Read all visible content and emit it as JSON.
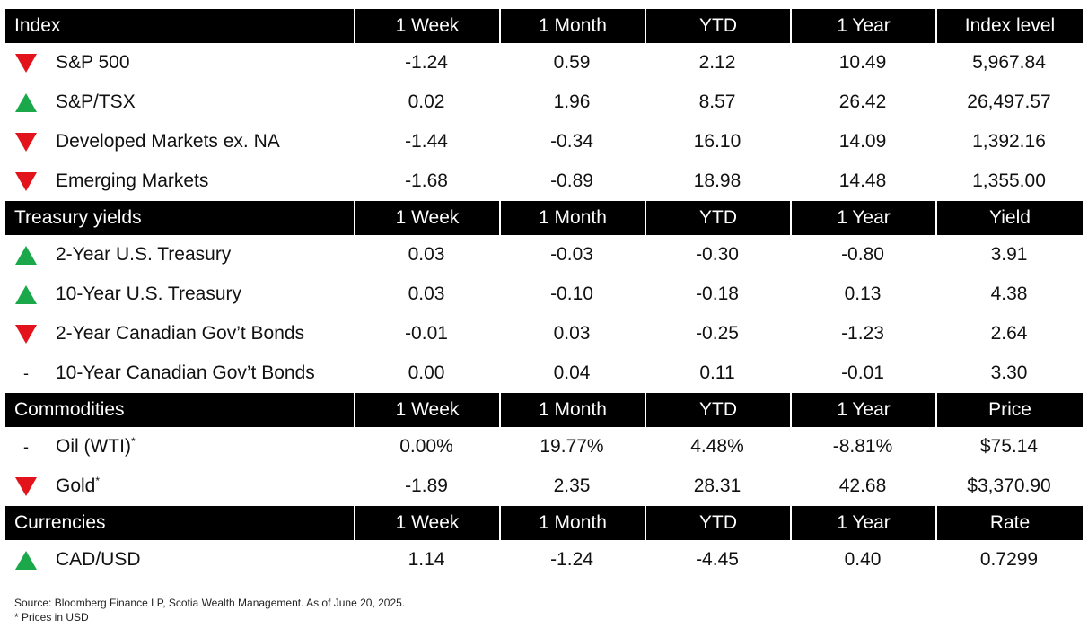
{
  "sections": [
    {
      "headers": [
        "Index",
        "1 Week",
        "1 Month",
        "YTD",
        "1 Year",
        "Index level"
      ],
      "rows": [
        {
          "trend": "down",
          "name": "S&P 500",
          "sup": "",
          "values": [
            "-1.24",
            "0.59",
            "2.12",
            "10.49",
            "5,967.84"
          ]
        },
        {
          "trend": "up",
          "name": "S&P/TSX",
          "sup": "",
          "values": [
            "0.02",
            "1.96",
            "8.57",
            "26.42",
            "26,497.57"
          ]
        },
        {
          "trend": "down",
          "name": "Developed Markets ex. NA",
          "sup": "",
          "values": [
            "-1.44",
            "-0.34",
            "16.10",
            "14.09",
            "1,392.16"
          ]
        },
        {
          "trend": "down",
          "name": "Emerging Markets",
          "sup": "",
          "values": [
            "-1.68",
            "-0.89",
            "18.98",
            "14.48",
            "1,355.00"
          ]
        }
      ]
    },
    {
      "headers": [
        "Treasury yields",
        "1 Week",
        "1 Month",
        "YTD",
        "1 Year",
        "Yield"
      ],
      "rows": [
        {
          "trend": "up",
          "name": "2-Year U.S. Treasury",
          "sup": "",
          "values": [
            "0.03",
            "-0.03",
            "-0.30",
            "-0.80",
            "3.91"
          ]
        },
        {
          "trend": "up",
          "name": "10-Year U.S. Treasury",
          "sup": "",
          "values": [
            "0.03",
            "-0.10",
            "-0.18",
            "0.13",
            "4.38"
          ]
        },
        {
          "trend": "down",
          "name": "2-Year Canadian Gov’t Bonds",
          "sup": "",
          "values": [
            "-0.01",
            "0.03",
            "-0.25",
            "-1.23",
            "2.64"
          ]
        },
        {
          "trend": "flat",
          "name": "10-Year Canadian Gov’t Bonds",
          "sup": "",
          "values": [
            "0.00",
            "0.04",
            "0.11",
            "-0.01",
            "3.30"
          ]
        }
      ]
    },
    {
      "headers": [
        "Commodities",
        "1 Week",
        "1 Month",
        "YTD",
        "1 Year",
        "Price"
      ],
      "rows": [
        {
          "trend": "flat",
          "name": "Oil (WTI)",
          "sup": "*",
          "values": [
            "0.00%",
            "19.77%",
            "4.48%",
            "-8.81%",
            "$75.14"
          ]
        },
        {
          "trend": "down",
          "name": "Gold",
          "sup": "*",
          "values": [
            "-1.89",
            "2.35",
            "28.31",
            "42.68",
            "$3,370.90"
          ]
        }
      ]
    },
    {
      "headers": [
        "Currencies",
        "1 Week",
        "1 Month",
        "YTD",
        "1 Year",
        "Rate"
      ],
      "rows": [
        {
          "trend": "up",
          "name": "CAD/USD",
          "sup": "",
          "values": [
            "1.14",
            "-1.24",
            "-4.45",
            "0.40",
            "0.7299"
          ]
        }
      ]
    }
  ],
  "trend_symbols": {
    "flat": "-"
  },
  "colors": {
    "down": "#e3131b",
    "up": "#1aa84b",
    "header_bg": "#000000"
  },
  "icons": {
    "down": "red-down-triangle-icon",
    "up": "green-up-triangle-icon",
    "flat": "dash-icon"
  },
  "footnotes": {
    "source": "Source: Bloomberg Finance LP, Scotia Wealth Management. As of June 20, 2025.",
    "note": "* Prices in USD"
  }
}
